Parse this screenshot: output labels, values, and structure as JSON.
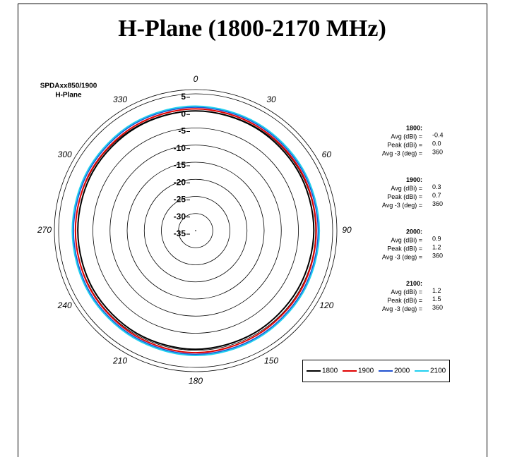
{
  "chart_data": {
    "type": "polar",
    "title": "H-Plane (1800-2170 MHz)",
    "subtitle": [
      "SPDAxx850/1900",
      "H-Plane"
    ],
    "rlim": [
      -35,
      5
    ],
    "rticks": [
      5,
      0,
      -5,
      -10,
      -15,
      -20,
      -25,
      -30,
      -35
    ],
    "theta": [
      0,
      30,
      60,
      90,
      120,
      150,
      180,
      210,
      240,
      270,
      300,
      330
    ],
    "series": [
      {
        "name": "1800",
        "color": "#000000",
        "values": [
          0.0,
          -0.2,
          -0.4,
          -0.5,
          -0.6,
          -0.5,
          -0.3,
          -0.4,
          -0.5,
          -0.6,
          -0.4,
          -0.2
        ]
      },
      {
        "name": "1900",
        "color": "#e00000",
        "values": [
          0.6,
          0.4,
          0.3,
          0.2,
          0.3,
          0.4,
          0.7,
          0.4,
          0.2,
          0.1,
          0.2,
          0.4
        ]
      },
      {
        "name": "2000",
        "color": "#2050d0",
        "values": [
          1.1,
          0.9,
          0.8,
          0.8,
          0.9,
          1.0,
          1.2,
          0.9,
          0.8,
          0.7,
          0.8,
          1.0
        ]
      },
      {
        "name": "2100",
        "color": "#20d0f0",
        "values": [
          1.4,
          1.2,
          1.1,
          1.1,
          1.2,
          1.3,
          1.5,
          1.2,
          1.1,
          1.0,
          1.1,
          1.3
        ]
      }
    ],
    "stats": [
      {
        "title": "1800:",
        "rows": [
          [
            "Avg (dBi) =",
            "-0.4"
          ],
          [
            "Peak (dBi) =",
            "0.0"
          ],
          [
            "Avg -3 (deg) =",
            "360"
          ]
        ]
      },
      {
        "title": "1900:",
        "rows": [
          [
            "Avg (dBi) =",
            "0.3"
          ],
          [
            "Peak (dBi) =",
            "0.7"
          ],
          [
            "Avg -3 (deg) =",
            "360"
          ]
        ]
      },
      {
        "title": "2000:",
        "rows": [
          [
            "Avg (dBi) =",
            "0.9"
          ],
          [
            "Peak (dBi) =",
            "1.2"
          ],
          [
            "Avg -3 (deg) =",
            "360"
          ]
        ]
      },
      {
        "title": "2100:",
        "rows": [
          [
            "Avg (dBi) =",
            "1.2"
          ],
          [
            "Peak (dBi) =",
            "1.5"
          ],
          [
            "Avg -3 (deg) =",
            "360"
          ]
        ]
      }
    ]
  }
}
